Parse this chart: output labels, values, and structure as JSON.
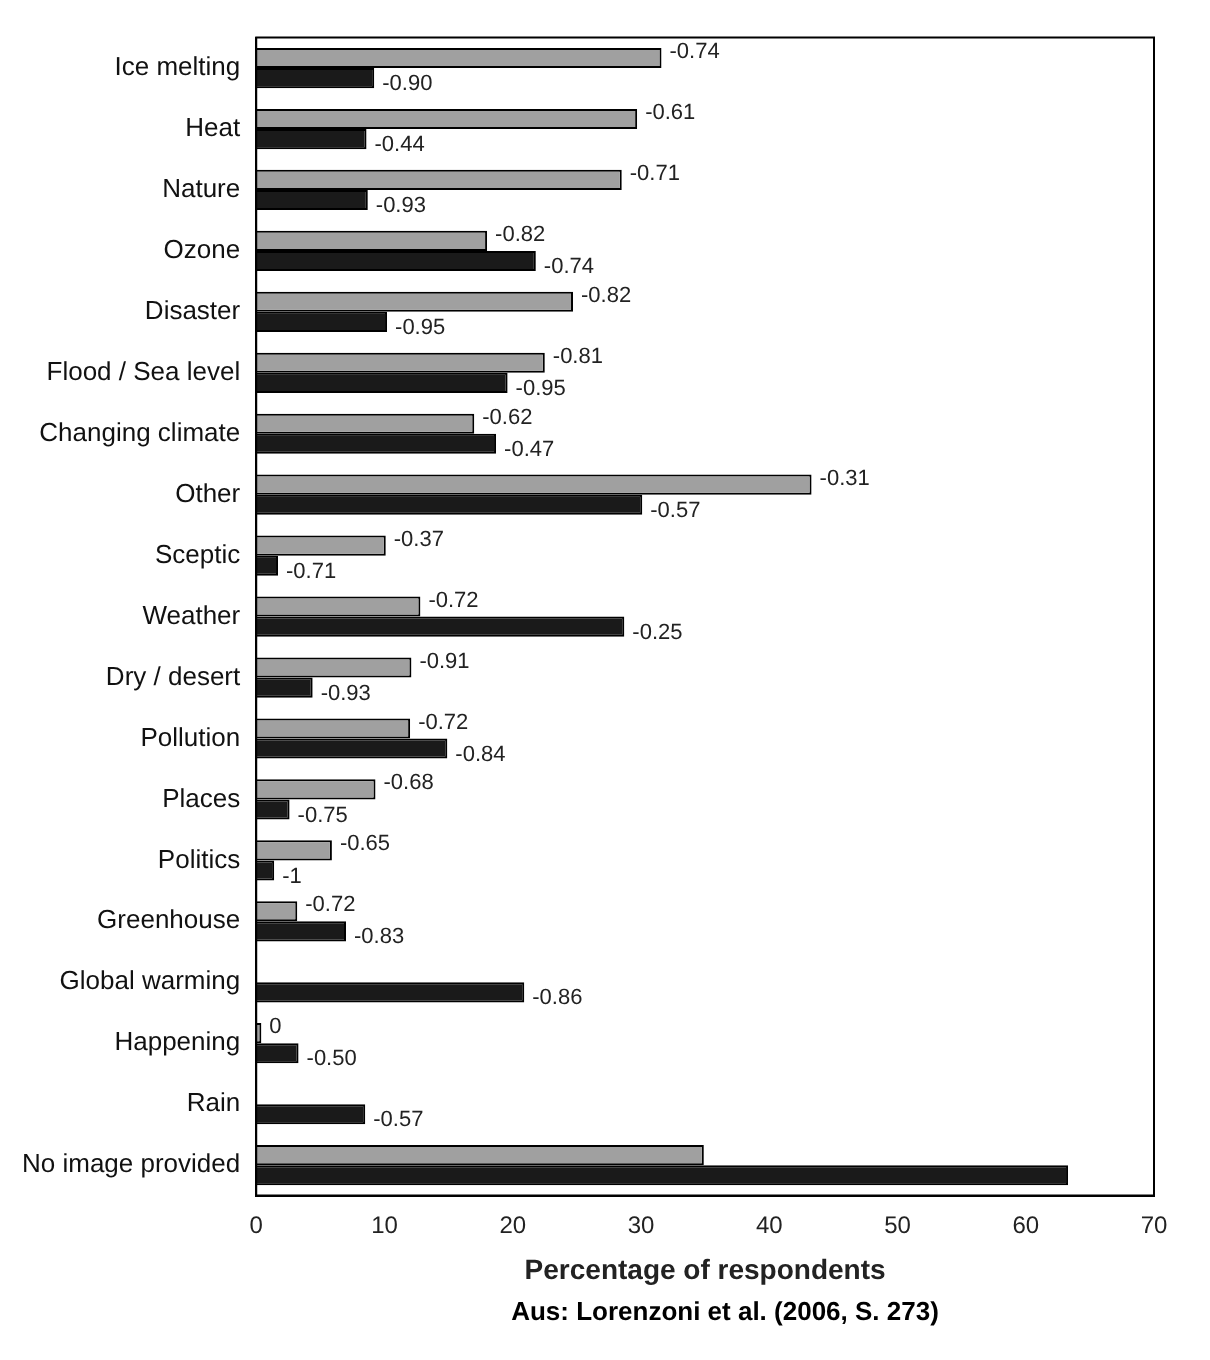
{
  "chart_data": {
    "type": "bar",
    "orientation": "horizontal",
    "xlabel": "Percentage of respondents",
    "annotations": [
      "Aus: Lorenzoni et al. (2006, S. 273)",
      {
        "text": "-0.74",
        "x": 31.6,
        "y": "Ice melting"
      },
      {
        "text": "-0.90",
        "x": 9.2,
        "y": "Ice melting"
      },
      {
        "text": "-0.61",
        "x": 29.7,
        "y": "Heat"
      },
      {
        "text": "-0.44",
        "x": 8.6,
        "y": "Heat"
      },
      {
        "text": "-0.71",
        "x": 28.5,
        "y": "Nature"
      },
      {
        "text": "-0.93",
        "x": 8.7,
        "y": "Nature"
      },
      {
        "text": "-0.82",
        "x": 18.0,
        "y": "Ozone"
      },
      {
        "text": "-0.74",
        "x": 21.8,
        "y": "Ozone"
      },
      {
        "text": "-0.82",
        "x": 24.7,
        "y": "Disaster"
      },
      {
        "text": "-0.95",
        "x": 10.2,
        "y": "Disaster"
      },
      {
        "text": "-0.81",
        "x": 22.5,
        "y": "Flood / Sea level"
      },
      {
        "text": "-0.95",
        "x": 19.6,
        "y": "Flood / Sea level"
      },
      {
        "text": "-0.62",
        "x": 17.0,
        "y": "Changing climate"
      },
      {
        "text": "-0.47",
        "x": 18.7,
        "y": "Changing climate"
      },
      {
        "text": "-0.31",
        "x": 43.3,
        "y": "Other"
      },
      {
        "text": "-0.57",
        "x": 30.1,
        "y": "Other"
      },
      {
        "text": "-0.37",
        "x": 10.1,
        "y": "Sceptic"
      },
      {
        "text": "-0.71",
        "x": 1.7,
        "y": "Sceptic"
      },
      {
        "text": "-0.72",
        "x": 12.8,
        "y": "Weather"
      },
      {
        "text": "-0.25",
        "x": 28.7,
        "y": "Weather"
      },
      {
        "text": "-0.91",
        "x": 12.1,
        "y": "Dry / desert"
      },
      {
        "text": "-0.93",
        "x": 4.4,
        "y": "Dry / desert"
      },
      {
        "text": "-0.72",
        "x": 12.0,
        "y": "Pollution"
      },
      {
        "text": "-0.84",
        "x": 14.9,
        "y": "Pollution"
      },
      {
        "text": "-0.68",
        "x": 9.3,
        "y": "Places"
      },
      {
        "text": "-0.75",
        "x": 2.6,
        "y": "Places"
      },
      {
        "text": "-0.65",
        "x": 5.9,
        "y": "Politics"
      },
      {
        "text": "-1",
        "x": 1.4,
        "y": "Politics"
      },
      {
        "text": "-0.72",
        "x": 3.2,
        "y": "Greenhouse"
      },
      {
        "text": "-0.83",
        "x": 7.0,
        "y": "Greenhouse"
      },
      {
        "text": "-0.86",
        "x": 20.9,
        "y": "Global warming"
      },
      {
        "text": "0",
        "x": 0.4,
        "y": "Happening"
      },
      {
        "text": "-0.50",
        "x": 3.3,
        "y": "Happening"
      },
      {
        "text": "-0.57",
        "x": 8.5,
        "y": "Rain"
      }
    ],
    "categories": [
      "Ice melting",
      "Heat",
      "Nature",
      "Ozone",
      "Disaster",
      "Flood / Sea level",
      "Changing climate",
      "Other",
      "Sceptic",
      "Weather",
      "Dry / desert",
      "Pollution",
      "Places",
      "Politics",
      "Greenhouse",
      "Global warming",
      "Happening",
      "Rain",
      "No image provided"
    ],
    "series": [
      {
        "color": "#a0a0a0",
        "values": [
          31.6,
          29.7,
          28.5,
          18.0,
          24.7,
          22.5,
          17.0,
          43.3,
          10.1,
          12.8,
          12.1,
          12.0,
          9.3,
          5.9,
          3.2,
          null,
          0.4,
          null,
          34.9
        ]
      },
      {
        "color": "#1a1a1a",
        "values": [
          9.2,
          8.6,
          8.7,
          21.8,
          10.2,
          19.6,
          18.7,
          30.1,
          1.7,
          28.7,
          4.4,
          14.9,
          2.6,
          1.4,
          7.0,
          20.9,
          3.3,
          8.5,
          63.3
        ]
      }
    ],
    "xlim": [
      0,
      70
    ],
    "xticks": [
      0,
      10,
      20,
      30,
      40,
      50,
      60,
      70
    ],
    "grid": false,
    "legend": false
  }
}
